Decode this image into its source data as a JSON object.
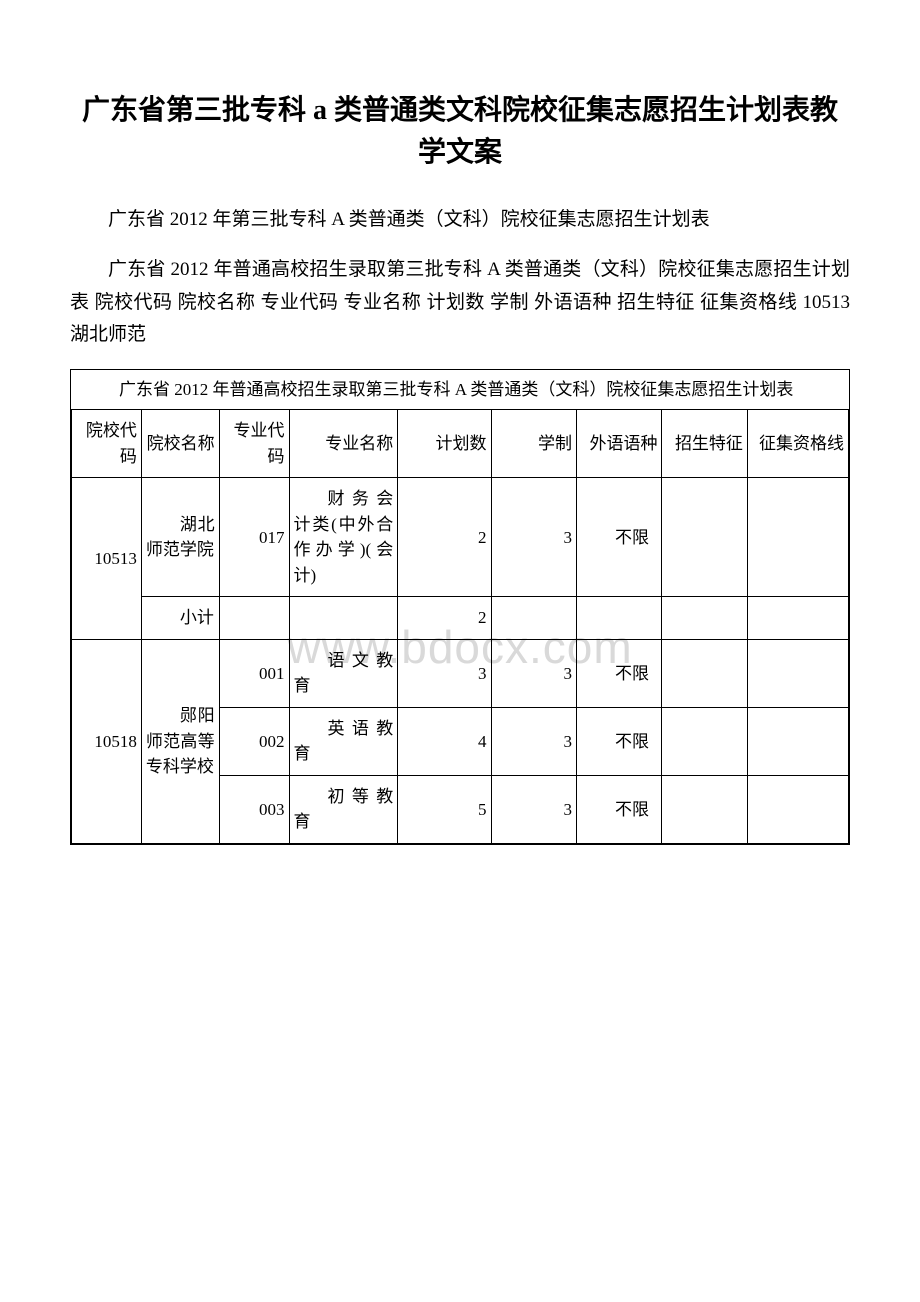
{
  "watermark": "www.bdocx.com",
  "title": "广东省第三批专科 a 类普通类文科院校征集志愿招生计划表教学文案",
  "para1": "广东省 2012 年第三批专科 A 类普通类（文科）院校征集志愿招生计划表",
  "para2": "广东省 2012 年普通高校招生录取第三批专科 A 类普通类（文科）院校征集志愿招生计划表 院校代码 院校名称 专业代码 专业名称 计划数 学制 外语语种 招生特征 征集资格线 10513 湖北师范",
  "tableCaption": "广东省 2012 年普通高校招生录取第三批专科 A 类普通类（文科）院校征集志愿招生计划表",
  "headers": {
    "c0": "院校代码",
    "c1": "院校名称",
    "c2": "专业代码",
    "c3": "专业名称",
    "c4": "计划数",
    "c5": "学制",
    "c6": "外语语种",
    "c7": "招生特征",
    "c8": "征集资格线"
  },
  "rows": {
    "r0": {
      "code": "10513",
      "school": "湖北师范学院",
      "mcode": "017",
      "mname": "财务会计类(中外合作办学)(会计)",
      "plan": "2",
      "dur": "3",
      "lang": "不限",
      "feat": "",
      "line": ""
    },
    "r1": {
      "school": "小计",
      "plan": "2"
    },
    "r2": {
      "code": "10518",
      "school": "郧阳师范高等专科学校",
      "mcode": "001",
      "mname": "语文教育",
      "plan": "3",
      "dur": "3",
      "lang": "不限",
      "feat": "",
      "line": ""
    },
    "r3": {
      "mcode": "002",
      "mname": "英语教育",
      "plan": "4",
      "dur": "3",
      "lang": "不限",
      "feat": "",
      "line": ""
    },
    "r4": {
      "mcode": "003",
      "mname": "初等教育",
      "plan": "5",
      "dur": "3",
      "lang": "不限",
      "feat": "",
      "line": ""
    }
  },
  "colors": {
    "text": "#000000",
    "bg": "#ffffff",
    "border": "#000000",
    "watermark": "#d9d9d9"
  }
}
